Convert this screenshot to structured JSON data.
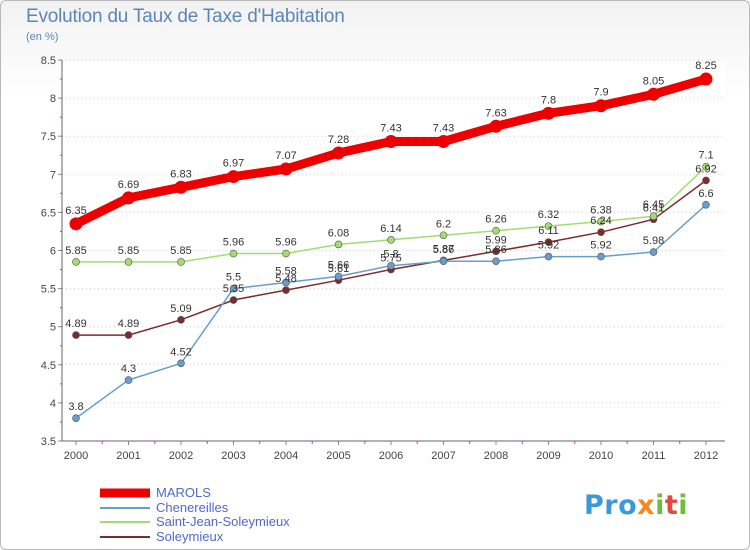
{
  "header": {
    "title": "Evolution du Taux de Taxe d'Habitation",
    "subtitle": "(en %)"
  },
  "logo": {
    "text": "Proxiti",
    "colors": [
      "#3a9ad9",
      "#f28a1d",
      "#6bbf3a",
      "#e24a3d"
    ]
  },
  "chart_data": {
    "type": "line",
    "title": "Evolution du Taux de Taxe d'Habitation",
    "subtitle": "(en %)",
    "xlabel": "",
    "ylabel": "",
    "x": [
      "2000",
      "2001",
      "2002",
      "2003",
      "2004",
      "2005",
      "2006",
      "2007",
      "2008",
      "2009",
      "2010",
      "2011",
      "2012"
    ],
    "ylim": [
      3.5,
      8.5
    ],
    "yticks": [
      "3.5",
      "4",
      "4.5",
      "5",
      "5.5",
      "6",
      "6.5",
      "7",
      "7.5",
      "8",
      "8.5"
    ],
    "grid": "horizontal dotted",
    "legend_position": "bottom-left",
    "series": [
      {
        "name": "MAROLS",
        "color": "#ee0000",
        "values": [
          6.35,
          6.69,
          6.83,
          6.97,
          7.07,
          7.28,
          7.43,
          7.43,
          7.63,
          7.8,
          7.9,
          8.05,
          8.25
        ],
        "labels": [
          "6.35",
          "6.69",
          "6.83",
          "6.97",
          "7.07",
          "7.28",
          "7.43",
          "7.43",
          "7.63",
          "7.8",
          "7.9",
          "8.05",
          "8.25"
        ]
      },
      {
        "name": "Chenereilles",
        "color": "#6a9ec9",
        "values": [
          3.8,
          4.3,
          4.52,
          5.5,
          5.58,
          5.66,
          5.8,
          5.86,
          5.86,
          5.92,
          5.92,
          5.98,
          6.6
        ],
        "labels": [
          "3.8",
          "4.3",
          "4.52",
          "5.5",
          "5.58",
          "5.66",
          "5.8",
          "5.86",
          "5.86",
          "5.92",
          "5.92",
          "5.98",
          "6.6"
        ]
      },
      {
        "name": "Saint-Jean-Soleymieux",
        "color": "#a3dc70",
        "values": [
          5.85,
          5.85,
          5.85,
          5.96,
          5.96,
          6.08,
          6.14,
          6.2,
          6.26,
          6.32,
          6.38,
          6.45,
          7.1
        ],
        "labels": [
          "5.85",
          "5.85",
          "5.85",
          "5.96",
          "5.96",
          "6.08",
          "6.14",
          "6.2",
          "6.26",
          "6.32",
          "6.38",
          "6.45",
          "7.1"
        ]
      },
      {
        "name": "Soleymieux",
        "color": "#7b2c2c",
        "values": [
          4.89,
          4.89,
          5.09,
          5.35,
          5.48,
          5.61,
          5.75,
          5.87,
          5.99,
          6.11,
          6.24,
          6.41,
          6.92
        ],
        "labels": [
          "4.89",
          "4.89",
          "5.09",
          "5.35",
          "5.48",
          "5.61",
          "5.75",
          "5.87",
          "5.99",
          "6.11",
          "6.24",
          "6.41",
          "6.92"
        ]
      }
    ]
  }
}
